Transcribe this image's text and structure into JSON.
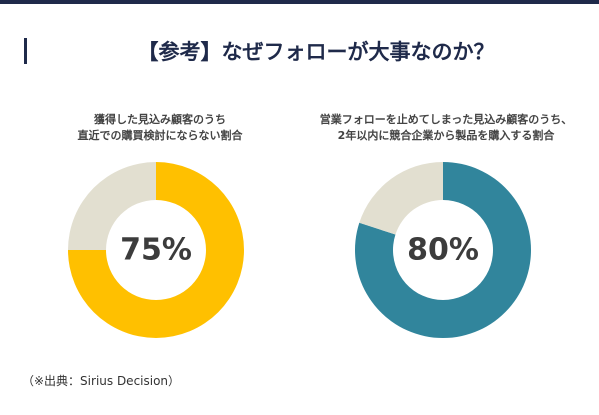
{
  "title": "【参考】なぜフォローが大事なのか？",
  "source": "（※出典：Sirius Decision）",
  "colors": {
    "navy": "#1f2a4a",
    "yellow": "#ffc000",
    "teal": "#31859c",
    "remainder": "#e2dfd0"
  },
  "chart_data": [
    {
      "type": "pie",
      "caption_lines": [
        "獲得した見込み顧客のうち",
        "直近での購買検討にならない割合"
      ],
      "categories": [
        "直近での購買検討にならない",
        ""
      ],
      "values": [
        75,
        25
      ],
      "label": "75%",
      "colors": [
        "#ffc000",
        "#e2dfd0"
      ]
    },
    {
      "type": "pie",
      "caption_lines": [
        "営業フォローを止めてしまった見込み顧客のうち、",
        "2年以内に競合企業から製品を購入する割合"
      ],
      "categories": [
        "2年以内に競合企業から製品を購入",
        ""
      ],
      "values": [
        80,
        20
      ],
      "label": "80%",
      "colors": [
        "#31859c",
        "#e2dfd0"
      ]
    }
  ]
}
